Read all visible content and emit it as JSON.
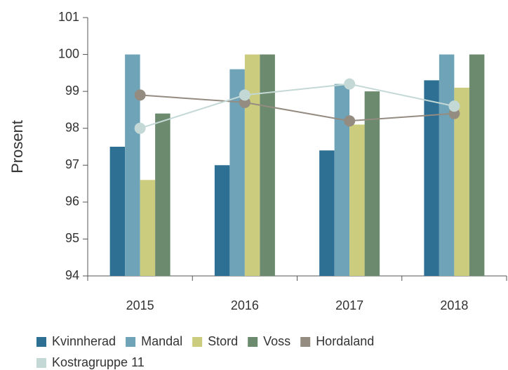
{
  "chart_data": {
    "type": "bar",
    "y_label": "Prosent",
    "categories": [
      "2015",
      "2016",
      "2017",
      "2018"
    ],
    "series": [
      {
        "name": "Kvinnherad",
        "color": "#2e7093",
        "values": [
          97.5,
          97.0,
          97.4,
          99.3
        ]
      },
      {
        "name": "Mandal",
        "color": "#6fa3b8",
        "values": [
          100,
          99.6,
          99.2,
          100
        ]
      },
      {
        "name": "Stord",
        "color": "#cccc7f",
        "values": [
          96.6,
          100,
          98.1,
          99.1
        ]
      },
      {
        "name": "Voss",
        "color": "#6b8a6e",
        "values": [
          98.4,
          100,
          99.0,
          100
        ]
      },
      {
        "name": "Hordaland",
        "color": "#948c80",
        "type": "line",
        "values": [
          98.9,
          98.7,
          98.2,
          98.4
        ]
      },
      {
        "name": "Kostragruppe 11",
        "color": "#c4d9d6",
        "type": "line",
        "values": [
          98.0,
          98.9,
          99.2,
          98.6
        ]
      }
    ],
    "ylim": [
      94,
      101
    ],
    "yticks": [
      94,
      95,
      96,
      97,
      98,
      99,
      100,
      101
    ]
  }
}
